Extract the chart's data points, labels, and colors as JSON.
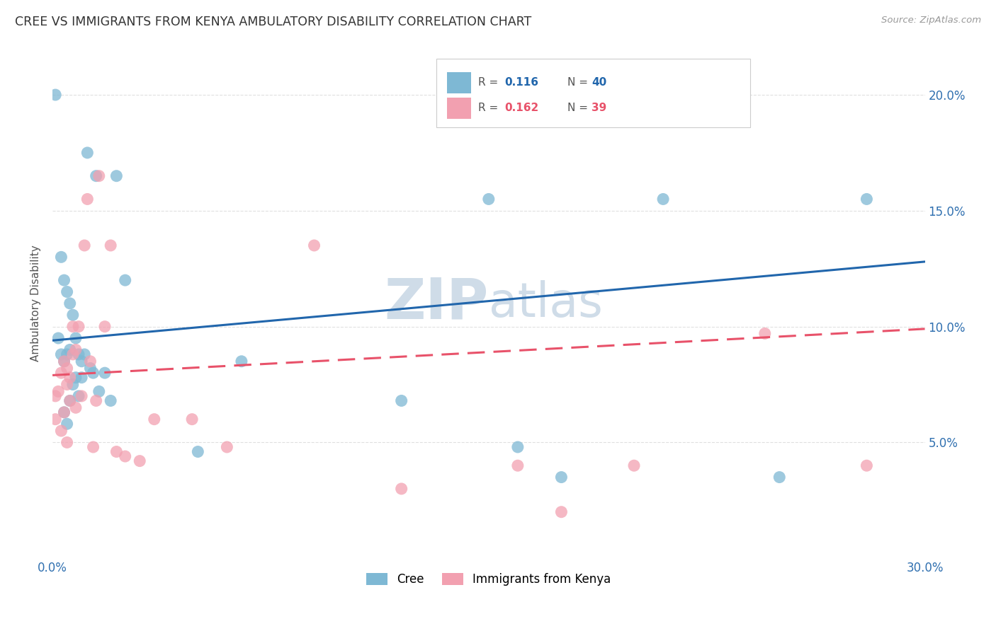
{
  "title": "CREE VS IMMIGRANTS FROM KENYA AMBULATORY DISABILITY CORRELATION CHART",
  "source": "Source: ZipAtlas.com",
  "ylabel": "Ambulatory Disability",
  "xlim": [
    0.0,
    0.3
  ],
  "ylim": [
    0.0,
    0.22
  ],
  "yticks": [
    0.05,
    0.1,
    0.15,
    0.2
  ],
  "ytick_labels": [
    "5.0%",
    "10.0%",
    "15.0%",
    "20.0%"
  ],
  "legend_blue_r": "0.116",
  "legend_blue_n": "40",
  "legend_pink_r": "0.162",
  "legend_pink_n": "39",
  "blue_color": "#92c5de",
  "pink_color": "#f4a582",
  "blue_scatter_color": "#7eb8d4",
  "pink_scatter_color": "#f2a0b0",
  "blue_line_color": "#2166ac",
  "pink_line_color": "#e8526a",
  "watermark_color": "#cfdce8",
  "background_color": "#ffffff",
  "grid_color": "#e0e0e0",
  "blue_line_start_y": 0.094,
  "blue_line_end_y": 0.128,
  "pink_line_start_y": 0.079,
  "pink_line_end_y": 0.099,
  "cree_x": [
    0.001,
    0.002,
    0.003,
    0.003,
    0.004,
    0.004,
    0.004,
    0.005,
    0.005,
    0.005,
    0.006,
    0.006,
    0.006,
    0.007,
    0.007,
    0.008,
    0.008,
    0.009,
    0.009,
    0.01,
    0.01,
    0.011,
    0.012,
    0.013,
    0.014,
    0.015,
    0.016,
    0.018,
    0.02,
    0.022,
    0.025,
    0.05,
    0.065,
    0.12,
    0.15,
    0.16,
    0.175,
    0.21,
    0.25,
    0.28
  ],
  "cree_y": [
    0.2,
    0.095,
    0.13,
    0.088,
    0.12,
    0.085,
    0.063,
    0.115,
    0.088,
    0.058,
    0.11,
    0.09,
    0.068,
    0.105,
    0.075,
    0.095,
    0.078,
    0.088,
    0.07,
    0.085,
    0.078,
    0.088,
    0.175,
    0.082,
    0.08,
    0.165,
    0.072,
    0.08,
    0.068,
    0.165,
    0.12,
    0.046,
    0.085,
    0.068,
    0.155,
    0.048,
    0.035,
    0.155,
    0.035,
    0.155
  ],
  "kenya_x": [
    0.001,
    0.001,
    0.002,
    0.003,
    0.003,
    0.004,
    0.004,
    0.005,
    0.005,
    0.005,
    0.006,
    0.006,
    0.007,
    0.007,
    0.008,
    0.008,
    0.009,
    0.01,
    0.011,
    0.012,
    0.013,
    0.014,
    0.015,
    0.016,
    0.018,
    0.02,
    0.022,
    0.025,
    0.03,
    0.035,
    0.048,
    0.06,
    0.09,
    0.12,
    0.16,
    0.175,
    0.2,
    0.245,
    0.28
  ],
  "kenya_y": [
    0.07,
    0.06,
    0.072,
    0.08,
    0.055,
    0.085,
    0.063,
    0.082,
    0.075,
    0.05,
    0.078,
    0.068,
    0.1,
    0.088,
    0.09,
    0.065,
    0.1,
    0.07,
    0.135,
    0.155,
    0.085,
    0.048,
    0.068,
    0.165,
    0.1,
    0.135,
    0.046,
    0.044,
    0.042,
    0.06,
    0.06,
    0.048,
    0.135,
    0.03,
    0.04,
    0.02,
    0.04,
    0.097,
    0.04
  ]
}
